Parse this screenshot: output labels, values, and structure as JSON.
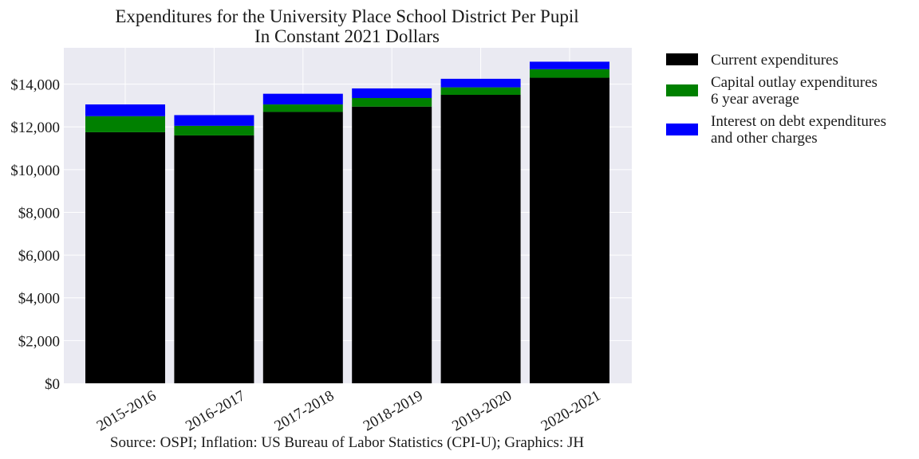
{
  "chart_data": {
    "type": "bar",
    "stacked": true,
    "title": "Expenditures for the University Place School District Per Pupil",
    "subtitle": "In Constant 2021 Dollars",
    "caption": "Source: OSPI; Inflation: US Bureau of Labor Statistics (CPI-U); Graphics: JH",
    "xlabel": "",
    "ylabel": "",
    "ylim": [
      0,
      15700
    ],
    "yticks": [
      0,
      2000,
      4000,
      6000,
      8000,
      10000,
      12000,
      14000
    ],
    "ytick_labels": [
      "$0",
      "$2,000",
      "$4,000",
      "$6,000",
      "$8,000",
      "$10,000",
      "$12,000",
      "$14,000"
    ],
    "grid": true,
    "legend_position": "outside-right-top",
    "categories": [
      "2015-2016",
      "2016-2017",
      "2017-2018",
      "2018-2019",
      "2019-2020",
      "2020-2021"
    ],
    "series": [
      {
        "name": "Current expenditures",
        "color": "#000000",
        "values": [
          11750,
          11600,
          12700,
          12950,
          13500,
          14300
        ]
      },
      {
        "name": "Capital outlay expenditures\n6 year average",
        "color": "#008000",
        "values": [
          750,
          450,
          350,
          400,
          350,
          400
        ]
      },
      {
        "name": "Interest on debt expenditures\nand other charges",
        "color": "#0000ff",
        "values": [
          550,
          500,
          500,
          450,
          400,
          350
        ]
      }
    ]
  }
}
